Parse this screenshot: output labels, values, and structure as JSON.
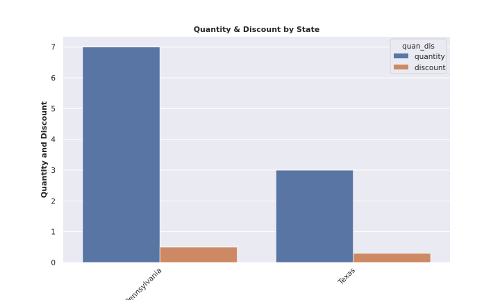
{
  "chart_data": {
    "type": "bar",
    "title": "Quantity & Discount by State",
    "xlabel": "",
    "ylabel": "Quantity and Discount",
    "categories": [
      "Pennsylvania",
      "Texas"
    ],
    "series": [
      {
        "name": "quantity",
        "values": [
          7,
          3
        ],
        "color": "#5875a4"
      },
      {
        "name": "discount",
        "values": [
          0.5,
          0.3
        ],
        "color": "#cc8963"
      }
    ],
    "ylim": [
      0,
      7.25
    ],
    "yticks": [
      0,
      1,
      2,
      3,
      4,
      5,
      6,
      7
    ],
    "grid": true,
    "legend": {
      "title": "quan_dis",
      "placement": "top-right"
    },
    "background": "#eaeaf2"
  }
}
